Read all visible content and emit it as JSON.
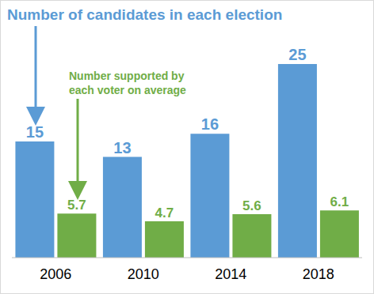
{
  "chart_data": {
    "type": "bar",
    "categories": [
      "2006",
      "2010",
      "2014",
      "2018"
    ],
    "series": [
      {
        "name": "Number of candidates in each election",
        "color": "#5b9bd5",
        "values": [
          15,
          13,
          16,
          25
        ]
      },
      {
        "name": "Number supported by each voter on average",
        "color": "#70ad47",
        "values": [
          5.7,
          4.7,
          5.6,
          6.1
        ]
      }
    ],
    "ylim": [
      0,
      25
    ],
    "data_labels": true,
    "tick_labels": "x",
    "grid": false
  }
}
